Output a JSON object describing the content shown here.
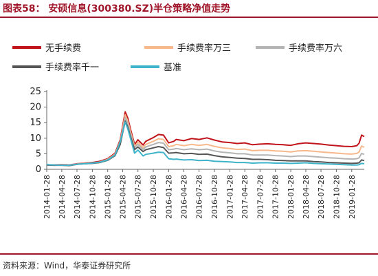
{
  "figure_title": "图表58：  安硕信息(300380.SZ)半仓策略净值走势",
  "source_note": "资料来源：Wind，华泰证券研究所",
  "chart_data": {
    "type": "line",
    "ylim": [
      0,
      25
    ],
    "y_ticks": [
      0,
      5,
      10,
      15,
      20,
      25
    ],
    "x_tick_labels": [
      "2014-01-28",
      "2014-04-28",
      "2014-07-28",
      "2014-10-28",
      "2015-01-28",
      "2015-04-28",
      "2015-07-28",
      "2015-10-28",
      "2016-01-28",
      "2016-04-28",
      "2016-07-28",
      "2016-10-28",
      "2017-01-28",
      "2017-04-28",
      "2017-07-28",
      "2017-10-28",
      "2018-01-28",
      "2018-04-28",
      "2018-07-28",
      "2018-10-28",
      "2019-01-28"
    ],
    "grid": false,
    "legend_position": "top",
    "x": [
      "2014-01-28",
      "2014-03-13",
      "2014-04-28",
      "2014-06-13",
      "2014-07-28",
      "2014-09-13",
      "2014-10-28",
      "2014-12-13",
      "2015-01-28",
      "2015-03-13",
      "2015-04-13",
      "2015-05-13",
      "2015-05-28",
      "2015-06-13",
      "2015-07-08",
      "2015-07-28",
      "2015-08-28",
      "2015-09-13",
      "2015-10-28",
      "2015-11-28",
      "2015-12-28",
      "2016-01-28",
      "2016-02-28",
      "2016-03-13",
      "2016-04-28",
      "2016-06-13",
      "2016-07-28",
      "2016-09-13",
      "2016-10-28",
      "2016-12-13",
      "2017-01-28",
      "2017-03-13",
      "2017-04-28",
      "2017-06-13",
      "2017-07-28",
      "2017-09-13",
      "2017-10-28",
      "2017-12-13",
      "2018-01-28",
      "2018-03-13",
      "2018-04-28",
      "2018-06-13",
      "2018-07-28",
      "2018-09-13",
      "2018-10-28",
      "2018-12-13",
      "2019-01-28",
      "2019-02-28",
      "2019-03-13",
      "2019-03-28",
      "2019-04-13"
    ],
    "series": [
      {
        "name": "无手续费",
        "color": "#c0131b",
        "values": [
          1.5,
          1.4,
          1.5,
          1.4,
          1.8,
          2.0,
          2.2,
          2.6,
          3.4,
          5.2,
          9.5,
          18.5,
          16.5,
          13.0,
          8.0,
          9.5,
          7.8,
          9.0,
          10.2,
          11.2,
          11.0,
          8.5,
          9.0,
          9.6,
          9.2,
          9.9,
          9.6,
          10.1,
          9.4,
          8.8,
          8.6,
          8.3,
          8.5,
          7.9,
          8.1,
          8.2,
          8.0,
          7.9,
          7.7,
          8.2,
          8.5,
          8.3,
          8.1,
          7.8,
          7.6,
          7.4,
          7.3,
          7.6,
          8.4,
          11.0,
          10.5
        ]
      },
      {
        "name": "手续费率万三",
        "color": "#f7b98c",
        "values": [
          1.4,
          1.3,
          1.4,
          1.3,
          1.7,
          1.9,
          2.0,
          2.4,
          3.2,
          4.9,
          9.0,
          17.5,
          15.5,
          12.2,
          7.4,
          8.7,
          7.0,
          8.0,
          9.0,
          9.8,
          9.6,
          7.3,
          7.6,
          8.0,
          7.6,
          8.0,
          7.7,
          8.0,
          7.4,
          6.9,
          6.7,
          6.4,
          6.5,
          6.0,
          6.1,
          6.1,
          5.9,
          5.8,
          5.6,
          5.9,
          6.0,
          5.8,
          5.6,
          5.4,
          5.2,
          5.0,
          4.9,
          5.1,
          5.6,
          7.5,
          7.1
        ]
      },
      {
        "name": "手续费率万六",
        "color": "#b4b4b4",
        "values": [
          1.4,
          1.3,
          1.4,
          1.3,
          1.7,
          1.8,
          2.0,
          2.3,
          3.1,
          4.7,
          8.6,
          16.6,
          14.6,
          11.5,
          6.9,
          8.0,
          6.4,
          7.2,
          8.0,
          8.6,
          8.4,
          6.3,
          6.5,
          6.7,
          6.3,
          6.6,
          6.3,
          6.5,
          5.9,
          5.5,
          5.3,
          5.0,
          5.0,
          4.6,
          4.6,
          4.6,
          4.4,
          4.3,
          4.1,
          4.3,
          4.3,
          4.1,
          3.9,
          3.7,
          3.6,
          3.4,
          3.3,
          3.4,
          3.7,
          5.1,
          4.8
        ]
      },
      {
        "name": "手续费率千一",
        "color": "#555555",
        "values": [
          1.4,
          1.3,
          1.3,
          1.2,
          1.6,
          1.8,
          1.9,
          2.2,
          2.9,
          4.4,
          8.0,
          15.5,
          13.6,
          10.6,
          6.3,
          7.2,
          5.7,
          6.3,
          6.9,
          7.3,
          7.0,
          5.2,
          5.3,
          5.4,
          5.0,
          5.1,
          4.8,
          4.9,
          4.4,
          4.0,
          3.8,
          3.6,
          3.5,
          3.2,
          3.2,
          3.1,
          2.9,
          2.8,
          2.7,
          2.7,
          2.7,
          2.5,
          2.4,
          2.2,
          2.1,
          2.0,
          1.9,
          2.0,
          2.1,
          3.0,
          2.8
        ]
      },
      {
        "name": "基准",
        "color": "#3eb3c9",
        "values": [
          1.5,
          1.4,
          1.3,
          1.3,
          1.6,
          1.8,
          2.0,
          2.3,
          3.0,
          4.6,
          8.8,
          15.2,
          13.0,
          10.0,
          5.2,
          6.2,
          4.3,
          4.8,
          5.2,
          5.5,
          5.4,
          3.4,
          3.2,
          3.3,
          3.0,
          3.1,
          2.8,
          2.9,
          2.6,
          2.5,
          2.4,
          2.2,
          2.2,
          2.0,
          2.1,
          2.1,
          2.0,
          2.0,
          1.9,
          2.0,
          2.1,
          1.9,
          1.8,
          1.7,
          1.6,
          1.5,
          1.4,
          1.4,
          1.5,
          1.9,
          1.8
        ]
      }
    ]
  }
}
